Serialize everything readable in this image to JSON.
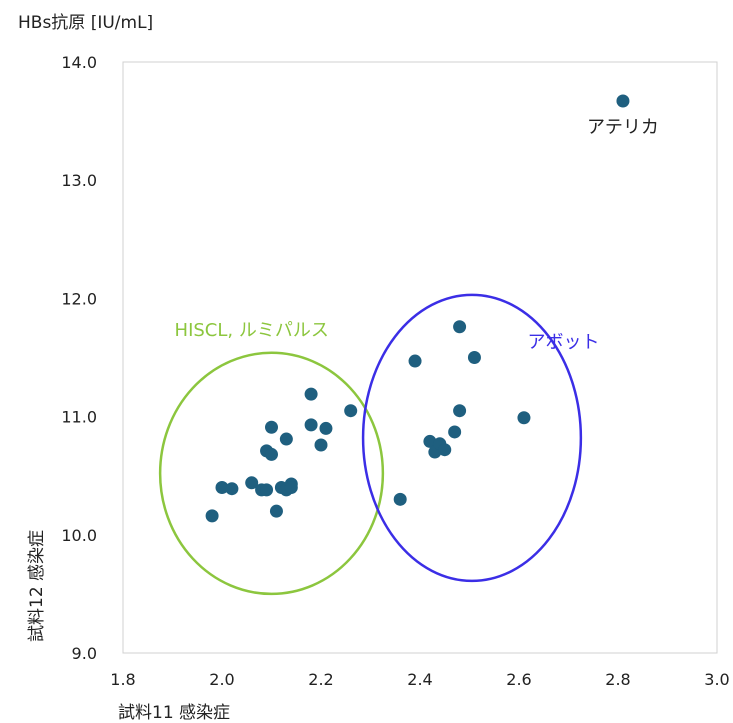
{
  "chart_data": {
    "type": "scatter",
    "ylabel": "HBs抗原 [IU/mL]",
    "xlabel": "試料11 感染症",
    "ylabel_side": "試料12 感染症",
    "xlim": [
      1.8,
      3.0
    ],
    "ylim": [
      9.0,
      14.0
    ],
    "x_ticks": [
      "1.8",
      "2.0",
      "2.2",
      "2.4",
      "2.6",
      "2.8",
      "3.0"
    ],
    "y_ticks": [
      "9.0",
      "10.0",
      "11.0",
      "12.0",
      "13.0",
      "14.0"
    ],
    "grid": false,
    "marker_color": "#1f5f7f",
    "points": [
      {
        "x": 1.98,
        "y": 10.16
      },
      {
        "x": 2.0,
        "y": 10.4
      },
      {
        "x": 2.02,
        "y": 10.39
      },
      {
        "x": 2.06,
        "y": 10.44
      },
      {
        "x": 2.08,
        "y": 10.38
      },
      {
        "x": 2.09,
        "y": 10.38
      },
      {
        "x": 2.09,
        "y": 10.71
      },
      {
        "x": 2.1,
        "y": 10.68
      },
      {
        "x": 2.1,
        "y": 10.91
      },
      {
        "x": 2.11,
        "y": 10.2
      },
      {
        "x": 2.12,
        "y": 10.4
      },
      {
        "x": 2.13,
        "y": 10.81
      },
      {
        "x": 2.13,
        "y": 10.38
      },
      {
        "x": 2.14,
        "y": 10.43
      },
      {
        "x": 2.14,
        "y": 10.4
      },
      {
        "x": 2.18,
        "y": 11.19
      },
      {
        "x": 2.18,
        "y": 10.93
      },
      {
        "x": 2.2,
        "y": 10.76
      },
      {
        "x": 2.21,
        "y": 10.9
      },
      {
        "x": 2.26,
        "y": 11.05
      },
      {
        "x": 2.36,
        "y": 10.3
      },
      {
        "x": 2.39,
        "y": 11.47
      },
      {
        "x": 2.42,
        "y": 10.79
      },
      {
        "x": 2.43,
        "y": 10.7
      },
      {
        "x": 2.44,
        "y": 10.77
      },
      {
        "x": 2.45,
        "y": 10.72
      },
      {
        "x": 2.47,
        "y": 10.87
      },
      {
        "x": 2.48,
        "y": 11.05
      },
      {
        "x": 2.48,
        "y": 11.76
      },
      {
        "x": 2.51,
        "y": 11.5
      },
      {
        "x": 2.61,
        "y": 10.99
      },
      {
        "x": 2.81,
        "y": 13.67
      }
    ],
    "groups": [
      {
        "name": "HISCL, ルミパルス",
        "color": "#8cc63e",
        "cx": 2.1,
        "cy": 10.52,
        "rx": 0.225,
        "ry": 1.02
      },
      {
        "name": "アボット",
        "color": "#3b2ee6",
        "cx": 2.505,
        "cy": 10.82,
        "rx": 0.22,
        "ry": 1.21
      }
    ],
    "annotations": [
      {
        "text": "アテリカ",
        "x": 2.81,
        "y": 13.4,
        "color": "#222222"
      },
      {
        "text": "HISCL, ルミパルス",
        "x": 2.06,
        "y": 11.68,
        "color": "#8cc63e"
      },
      {
        "text": "アボット",
        "x": 2.69,
        "y": 11.58,
        "color": "#3b2ee6"
      }
    ]
  }
}
